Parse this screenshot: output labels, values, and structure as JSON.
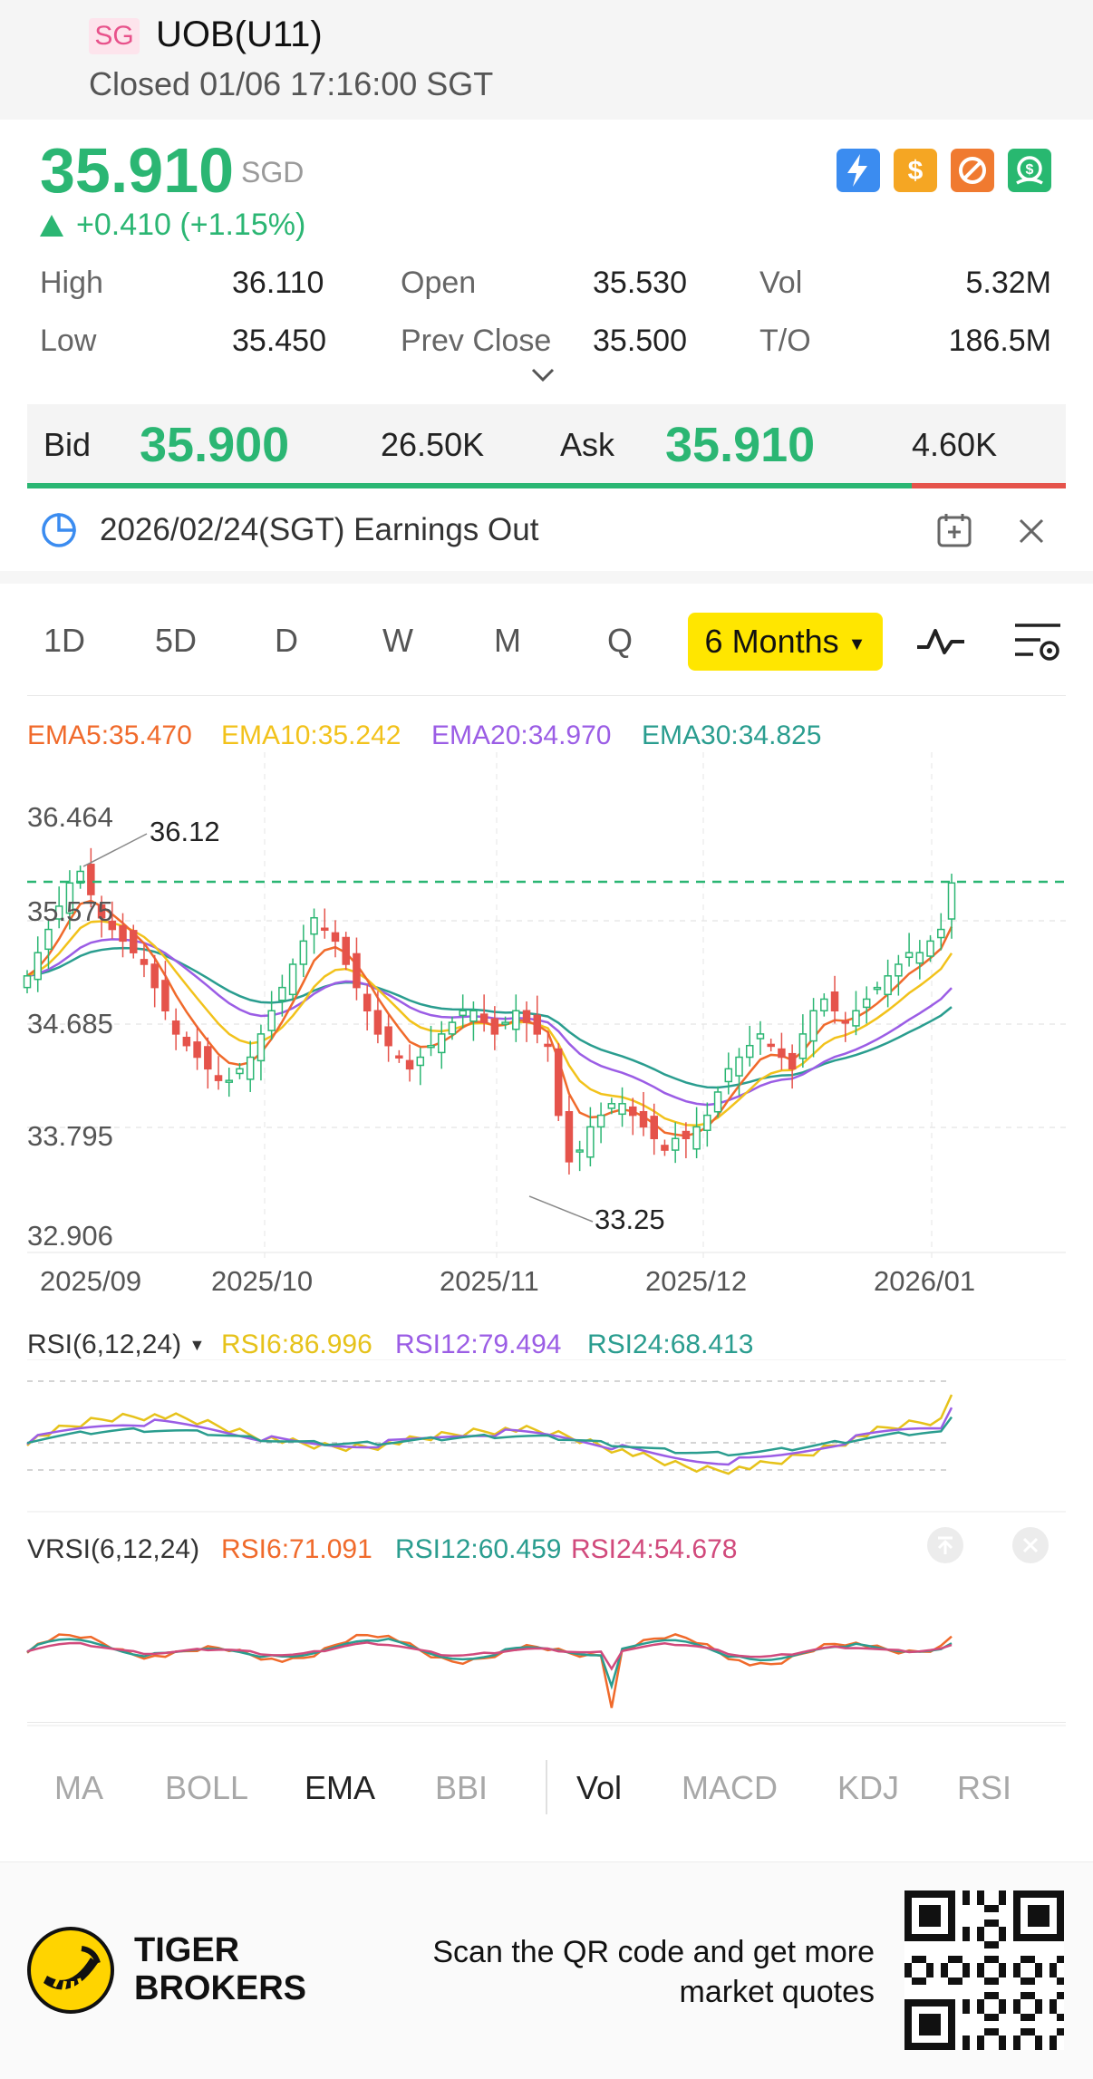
{
  "header": {
    "market_badge": "SG",
    "title": "UOB(U11)",
    "status": "Closed 01/06 17:16:00 SGT"
  },
  "quote": {
    "price": "35.910",
    "currency": "SGD",
    "change": "+0.410 (+1.15%)",
    "colors": {
      "up": "#2bb673",
      "down": "#e5534b"
    },
    "icons": [
      "flash-icon",
      "dollar-icon",
      "no-short-icon",
      "cash-icon"
    ],
    "stats": {
      "high_label": "High",
      "high": "36.110",
      "open_label": "Open",
      "open": "35.530",
      "vol_label": "Vol",
      "vol": "5.32M",
      "low_label": "Low",
      "low": "35.450",
      "prev_close_label": "Prev Close",
      "prev_close": "35.500",
      "to_label": "T/O",
      "to": "186.5M"
    }
  },
  "bid_ask": {
    "bid_label": "Bid",
    "bid_price": "35.900",
    "bid_vol": "26.50K",
    "ask_label": "Ask",
    "ask_price": "35.910",
    "ask_vol": "4.60K",
    "bid_share": 0.85
  },
  "earnings": {
    "text": "2026/02/24(SGT) Earnings Out"
  },
  "period_tabs": {
    "items": [
      "1D",
      "5D",
      "D",
      "W",
      "M",
      "Q"
    ],
    "active": "6 Months"
  },
  "ema_legend": {
    "ema5": "EMA5:35.470",
    "ema10": "EMA10:35.242",
    "ema20": "EMA20:34.970",
    "ema30": "EMA30:34.825",
    "colors": {
      "ema5": "#f06a2b",
      "ema10": "#f2c21b",
      "ema20": "#9b5de5",
      "ema30": "#2a9d8f"
    }
  },
  "chart_data": [
    {
      "type": "candlestick",
      "y_ticks": [
        "36.464",
        "35.575",
        "34.685",
        "33.795",
        "32.906"
      ],
      "ylim": [
        32.906,
        36.464
      ],
      "x_ticks": [
        "2025/09",
        "2025/10",
        "2025/11",
        "2025/12",
        "2026/01"
      ],
      "annotations": {
        "high": "36.12",
        "low": "33.25"
      },
      "last_price": 35.91,
      "closes": [
        35.1,
        35.3,
        35.5,
        35.7,
        35.9,
        36.0,
        35.8,
        35.6,
        35.5,
        35.4,
        35.3,
        35.2,
        35.0,
        34.8,
        34.6,
        34.5,
        34.4,
        34.3,
        34.2,
        34.2,
        34.3,
        34.4,
        34.6,
        34.8,
        35.0,
        35.2,
        35.4,
        35.6,
        35.5,
        35.4,
        35.2,
        35.0,
        34.8,
        34.6,
        34.5,
        34.4,
        34.3,
        34.4,
        34.5,
        34.6,
        34.7,
        34.8,
        34.8,
        34.7,
        34.6,
        34.7,
        34.8,
        34.7,
        34.6,
        34.5,
        33.9,
        33.5,
        33.6,
        33.8,
        33.9,
        34.0,
        34.0,
        33.9,
        33.8,
        33.7,
        33.6,
        33.7,
        33.7,
        33.8,
        33.9,
        34.1,
        34.3,
        34.4,
        34.5,
        34.6,
        34.5,
        34.4,
        34.3,
        34.6,
        34.8,
        34.9,
        34.8,
        34.7,
        34.8,
        34.9,
        35.0,
        35.1,
        35.2,
        35.3,
        35.3,
        35.4,
        35.5,
        35.9
      ],
      "ema5_end": 35.47,
      "ema10_end": 35.242,
      "ema20_end": 34.97,
      "ema30_end": 34.825
    },
    {
      "type": "line",
      "title": "RSI(6,12,24)",
      "series": [
        {
          "name": "RSI6:86.996",
          "color": "#e6c21a",
          "last": 86.996
        },
        {
          "name": "RSI12:79.494",
          "color": "#9b5de5",
          "last": 79.494
        },
        {
          "name": "RSI24:68.413",
          "color": "#2a9d8f",
          "last": 68.413
        }
      ]
    },
    {
      "type": "line",
      "title": "VRSI(6,12,24)",
      "series": [
        {
          "name": "RSI6:71.091",
          "color": "#f06a2b",
          "last": 71.091
        },
        {
          "name": "RSI12:60.459",
          "color": "#2a9d8f",
          "last": 60.459
        },
        {
          "name": "RSI24:54.678",
          "color": "#d14a7c",
          "last": 54.678
        }
      ]
    }
  ],
  "indicator_tabs": {
    "main": [
      "MA",
      "BOLL",
      "EMA",
      "BBI"
    ],
    "sub": [
      "Vol",
      "MACD",
      "KDJ",
      "RSI"
    ],
    "active_main": "EMA",
    "active_sub": "Vol"
  },
  "footer": {
    "brand_line1": "TIGER",
    "brand_line2": "BROKERS",
    "scan_line1": "Scan the QR code and get more",
    "scan_line2": "market quotes"
  }
}
